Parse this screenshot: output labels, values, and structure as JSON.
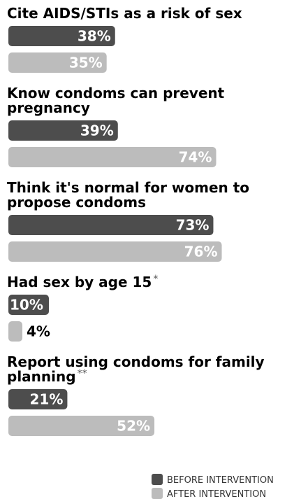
{
  "chart_data": {
    "type": "bar",
    "orientation": "horizontal",
    "xlim": [
      0,
      100
    ],
    "value_suffix": "%",
    "series": [
      {
        "name": "BEFORE INTERVENTION",
        "color": "#4d4d4d"
      },
      {
        "name": "AFTER INTERVENTION",
        "color": "#bcbcbc"
      }
    ],
    "groups": [
      {
        "title_lines": [
          "Cite AIDS/STIs as a risk of sex"
        ],
        "footnote": "",
        "values": [
          38,
          35
        ]
      },
      {
        "title_lines": [
          "Know condoms can prevent",
          "pregnancy"
        ],
        "footnote": "",
        "values": [
          39,
          74
        ]
      },
      {
        "title_lines": [
          "Think it's normal for women to",
          "propose condoms"
        ],
        "footnote": "",
        "values": [
          73,
          76
        ]
      },
      {
        "title_lines": [
          "Had sex by age 15"
        ],
        "footnote": "*",
        "values": [
          10,
          4
        ]
      },
      {
        "title_lines": [
          "Report using condoms for family",
          "planning"
        ],
        "footnote": "**",
        "values": [
          21,
          52
        ]
      }
    ],
    "legend": [
      "BEFORE INTERVENTION",
      "AFTER INTERVENTION"
    ],
    "legend_position": "bottom-right"
  }
}
